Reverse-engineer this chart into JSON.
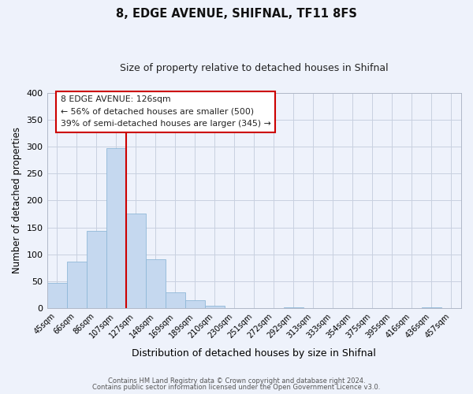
{
  "title": "8, EDGE AVENUE, SHIFNAL, TF11 8FS",
  "subtitle": "Size of property relative to detached houses in Shifnal",
  "xlabel": "Distribution of detached houses by size in Shifnal",
  "ylabel": "Number of detached properties",
  "bar_labels": [
    "45sqm",
    "66sqm",
    "86sqm",
    "107sqm",
    "127sqm",
    "148sqm",
    "169sqm",
    "189sqm",
    "210sqm",
    "230sqm",
    "251sqm",
    "272sqm",
    "292sqm",
    "313sqm",
    "333sqm",
    "354sqm",
    "375sqm",
    "395sqm",
    "416sqm",
    "436sqm",
    "457sqm"
  ],
  "bar_values": [
    47,
    86,
    144,
    297,
    175,
    91,
    30,
    14,
    5,
    0,
    0,
    0,
    2,
    0,
    0,
    0,
    0,
    0,
    0,
    2,
    0
  ],
  "bar_color": "#c5d8ef",
  "bar_edge_color": "#8fb8d8",
  "vline_x_index": 3.5,
  "vline_color": "#cc0000",
  "ylim": [
    0,
    400
  ],
  "yticks": [
    0,
    50,
    100,
    150,
    200,
    250,
    300,
    350,
    400
  ],
  "annotation_title": "8 EDGE AVENUE: 126sqm",
  "annotation_line1": "← 56% of detached houses are smaller (500)",
  "annotation_line2": "39% of semi-detached houses are larger (345) →",
  "footnote1": "Contains HM Land Registry data © Crown copyright and database right 2024.",
  "footnote2": "Contains public sector information licensed under the Open Government Licence v3.0.",
  "bg_color": "#eef2fb",
  "plot_bg_color": "#eef2fb",
  "grid_color": "#c8d0e0",
  "title_fontsize": 10.5,
  "subtitle_fontsize": 9,
  "ylabel_fontsize": 8.5,
  "xlabel_fontsize": 9
}
